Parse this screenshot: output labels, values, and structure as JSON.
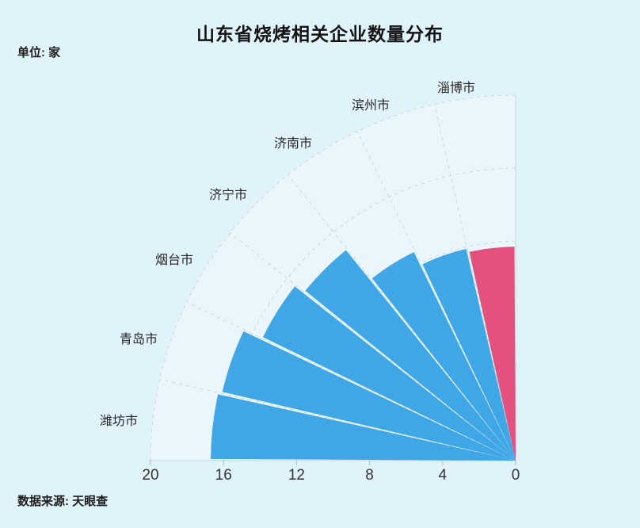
{
  "page": {
    "title": "山东省烧烤相关企业数量分布",
    "unit_label": "单位: 家",
    "source_label": "数据来源: 天眼查"
  },
  "chart_data": {
    "type": "bar",
    "coordinate": "polar-quarter",
    "title": "山东省烧烤相关企业数量分布",
    "unit": "家",
    "source": "数据来源: 天眼查",
    "categories": [
      "淄博市",
      "滨州市",
      "济南市",
      "济宁市",
      "烟台市",
      "青岛市",
      "潍坊市"
    ],
    "values": [
      11.7,
      11.9,
      12.7,
      14.8,
      15.4,
      16.5,
      16.7
    ],
    "highlight_category": "淄博市",
    "radial_ticks": [
      0,
      4,
      8,
      12,
      16,
      20
    ],
    "radial_range": [
      0,
      20
    ],
    "angular_span_deg": 90,
    "grid": true,
    "legend": false,
    "colors": {
      "bar": "#3FA7E5",
      "highlight": "#E5517E",
      "background": "#E1F3FA",
      "plot_fill": "#EBF6FC",
      "grid": "#C9D6DD",
      "axis": "#C6D4DB",
      "tick": "#A8BCC7",
      "text": "#333333",
      "title_text": "#141414"
    }
  }
}
